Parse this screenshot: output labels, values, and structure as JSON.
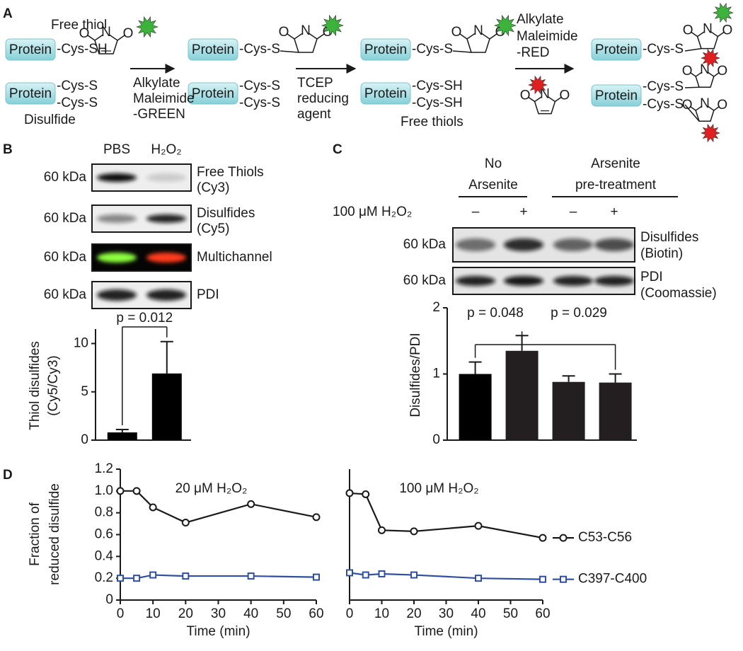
{
  "panel_labels": [
    "A",
    "B",
    "C",
    "D"
  ],
  "scheme": {
    "protein": "Protein",
    "atom_n": "N",
    "atom_o": "O",
    "free_thiol": "Free thiol",
    "disulfide": "Disulfide",
    "free_thiols": "Free thiols",
    "cys_sh": "-Cys-SH",
    "cys_s": "-Cys-S",
    "step1": [
      "Alkylate",
      "Maleimide",
      "-GREEN"
    ],
    "step2": [
      "TCEP",
      "reducing",
      "agent"
    ],
    "step3": [
      "Alkylate",
      "Maleimide",
      "-RED"
    ]
  },
  "blots_b": {
    "lanes": [
      "PBS",
      "H₂O₂"
    ],
    "rows": [
      {
        "mw": "60 kDa",
        "label": "Free Thiols",
        "sublabel": "(Cy3)"
      },
      {
        "mw": "60 kDa",
        "label": "Disulfides",
        "sublabel": "(Cy5)"
      },
      {
        "mw": "60 kDa",
        "label": "Multichannel"
      },
      {
        "mw": "60 kDa",
        "label": "PDI"
      }
    ]
  },
  "blots_c": {
    "groups": [
      [
        "No",
        "Arsenite"
      ],
      [
        "Arsenite",
        "pre-treatment"
      ]
    ],
    "treatment": "100 μM H₂O₂",
    "lanes": [
      "–",
      "+",
      "–",
      "+"
    ],
    "rows": [
      {
        "mw": "60 kDa",
        "label": "Disulfides",
        "sublabel": "(Biotin)"
      },
      {
        "mw": "60 kDa",
        "label": "PDI",
        "sublabel": "(Coomassie)"
      }
    ]
  },
  "chart_data": [
    {
      "type": "bar",
      "ylabel": [
        "Thiol disulfides",
        "(Cy5/Cy3)"
      ],
      "categories": [
        null,
        null
      ],
      "values": [
        0.8,
        6.9
      ],
      "errors": [
        0.3,
        3.3
      ],
      "colors": [
        "#000000",
        "#000000"
      ],
      "ylim": [
        0,
        11.5
      ],
      "yticks": [
        0,
        5,
        10
      ],
      "annotations": [
        "p = 0.012"
      ]
    },
    {
      "type": "bar",
      "ylabel": [
        "Disulfides/PDI"
      ],
      "categories": [
        null,
        null,
        null,
        null
      ],
      "values": [
        1.0,
        1.35,
        0.88,
        0.87
      ],
      "errors": [
        0.18,
        0.23,
        0.09,
        0.13
      ],
      "colors": [
        "#000000",
        "#231f20",
        "#231f20",
        "#231f20"
      ],
      "ylim": [
        0,
        2
      ],
      "yticks": [
        0,
        1,
        2
      ],
      "annotations": [
        "p = 0.048",
        "p = 0.029"
      ]
    },
    {
      "type": "line",
      "title": "20 μM H₂O₂",
      "xlabel": "Time (min)",
      "ylabel": [
        "Fraction of",
        "reduced disulfide"
      ],
      "x": [
        0,
        5,
        10,
        20,
        40,
        60
      ],
      "series": [
        {
          "color": "#1a1a1a",
          "marker": "circle",
          "values": [
            1.0,
            1.0,
            0.85,
            0.71,
            0.88,
            0.76
          ]
        },
        {
          "color": "#2e4fa3",
          "marker": "square",
          "values": [
            0.2,
            0.2,
            0.23,
            0.22,
            0.22,
            0.21
          ]
        }
      ],
      "xlim": [
        0,
        60
      ],
      "xticks": [
        0,
        10,
        20,
        30,
        40,
        50,
        60
      ],
      "ylim": [
        0,
        1.2
      ],
      "yticks": [
        0,
        0.2,
        0.4,
        0.6,
        0.8,
        {
          "value": 1,
          "label": "1.0"
        },
        1.2
      ]
    },
    {
      "type": "line",
      "title": "100 μM H₂O₂",
      "xlabel": "Time (min)",
      "x": [
        0,
        5,
        10,
        20,
        40,
        60
      ],
      "series": [
        {
          "name": "C53-C56",
          "color": "#1a1a1a",
          "marker": "circle",
          "values": [
            0.98,
            0.97,
            0.64,
            0.63,
            0.68,
            0.57
          ]
        },
        {
          "name": "C397-C400",
          "color": "#2e4fa3",
          "marker": "square",
          "values": [
            0.25,
            0.23,
            0.24,
            0.23,
            0.2,
            0.19
          ]
        }
      ],
      "legend": "right",
      "xlim": [
        0,
        60
      ],
      "xticks": [
        0,
        10,
        20,
        30,
        40,
        50,
        60
      ],
      "ylim": [
        0,
        1.2
      ]
    }
  ]
}
